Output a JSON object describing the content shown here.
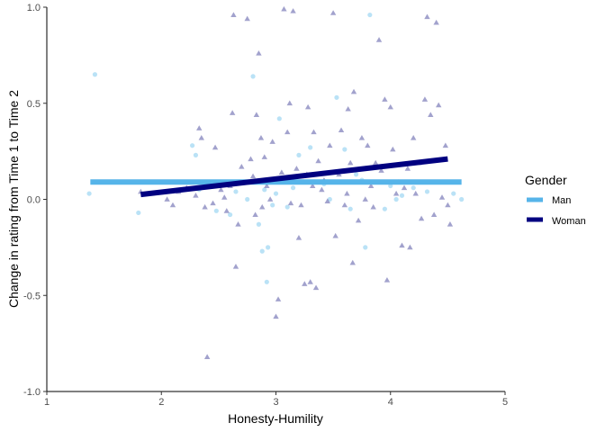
{
  "chart_data": {
    "type": "scatter",
    "title": "",
    "xlabel": "Honesty-Humility",
    "ylabel": "Change in rating from Time 1 to Time 2",
    "xlim": [
      1,
      5
    ],
    "ylim": [
      -1,
      1
    ],
    "x_ticks": [
      1,
      2,
      3,
      4,
      5
    ],
    "x_tick_labels": [
      "1",
      "2",
      "3",
      "4",
      "5"
    ],
    "y_ticks": [
      -1,
      -0.5,
      0,
      0.5,
      1
    ],
    "y_tick_labels": [
      "-1.0",
      "-0.5",
      "0.0",
      "0.5",
      "1.0"
    ],
    "grid": false,
    "legend": {
      "title": "Gender",
      "placement": "right",
      "entries": [
        {
          "label": "Man",
          "color": "#56B4E9"
        },
        {
          "label": "Woman",
          "color": "#000080"
        }
      ]
    },
    "series": [
      {
        "name": "Man",
        "marker": "circle",
        "color": "#AEDDF5",
        "points": [
          [
            1.37,
            0.03
          ],
          [
            1.42,
            0.65
          ],
          [
            1.8,
            -0.07
          ],
          [
            2.27,
            0.28
          ],
          [
            2.3,
            0.23
          ],
          [
            2.33,
            0.05
          ],
          [
            2.48,
            -0.06
          ],
          [
            2.6,
            -0.08
          ],
          [
            2.65,
            0.04
          ],
          [
            2.75,
            0.0
          ],
          [
            2.8,
            0.64
          ],
          [
            2.85,
            -0.13
          ],
          [
            2.88,
            -0.27
          ],
          [
            2.9,
            0.05
          ],
          [
            2.92,
            -0.43
          ],
          [
            2.93,
            -0.25
          ],
          [
            2.97,
            -0.03
          ],
          [
            3.0,
            0.03
          ],
          [
            3.03,
            0.42
          ],
          [
            3.1,
            -0.04
          ],
          [
            3.15,
            0.06
          ],
          [
            3.2,
            0.23
          ],
          [
            3.3,
            0.27
          ],
          [
            3.42,
            0.08
          ],
          [
            3.47,
            0.0
          ],
          [
            3.53,
            0.53
          ],
          [
            3.6,
            0.26
          ],
          [
            3.65,
            -0.05
          ],
          [
            3.7,
            0.13
          ],
          [
            3.75,
            0.1
          ],
          [
            3.78,
            -0.25
          ],
          [
            3.82,
            0.96
          ],
          [
            3.95,
            -0.05
          ],
          [
            4.0,
            0.07
          ],
          [
            4.05,
            0.0
          ],
          [
            4.1,
            0.02
          ],
          [
            4.2,
            0.06
          ],
          [
            4.32,
            0.04
          ],
          [
            4.55,
            0.03
          ],
          [
            4.62,
            -0.0
          ]
        ]
      },
      {
        "name": "Woman",
        "marker": "triangle",
        "color": "#7B7BB8",
        "points": [
          [
            1.82,
            0.04
          ],
          [
            2.05,
            0.0
          ],
          [
            2.1,
            -0.03
          ],
          [
            2.15,
            0.04
          ],
          [
            2.22,
            0.06
          ],
          [
            2.3,
            0.02
          ],
          [
            2.33,
            0.37
          ],
          [
            2.35,
            0.32
          ],
          [
            2.38,
            -0.04
          ],
          [
            2.4,
            -0.82
          ],
          [
            2.45,
            -0.02
          ],
          [
            2.47,
            0.27
          ],
          [
            2.52,
            0.05
          ],
          [
            2.55,
            0.01
          ],
          [
            2.57,
            -0.06
          ],
          [
            2.6,
            0.07
          ],
          [
            2.62,
            0.45
          ],
          [
            2.63,
            0.96
          ],
          [
            2.65,
            -0.35
          ],
          [
            2.67,
            -0.13
          ],
          [
            2.7,
            0.17
          ],
          [
            2.72,
            0.09
          ],
          [
            2.75,
            0.94
          ],
          [
            2.78,
            0.21
          ],
          [
            2.8,
            0.12
          ],
          [
            2.82,
            -0.08
          ],
          [
            2.83,
            0.44
          ],
          [
            2.85,
            0.76
          ],
          [
            2.87,
            0.32
          ],
          [
            2.88,
            -0.04
          ],
          [
            2.9,
            0.22
          ],
          [
            2.92,
            0.07
          ],
          [
            2.95,
            0.0
          ],
          [
            2.97,
            0.3
          ],
          [
            3.0,
            -0.61
          ],
          [
            3.02,
            -0.52
          ],
          [
            3.05,
            0.14
          ],
          [
            3.07,
            0.99
          ],
          [
            3.1,
            0.35
          ],
          [
            3.12,
            0.5
          ],
          [
            3.13,
            -0.02
          ],
          [
            3.15,
            0.98
          ],
          [
            3.18,
            0.16
          ],
          [
            3.2,
            -0.2
          ],
          [
            3.22,
            -0.03
          ],
          [
            3.25,
            -0.44
          ],
          [
            3.27,
            0.13
          ],
          [
            3.28,
            0.48
          ],
          [
            3.3,
            -0.43
          ],
          [
            3.32,
            0.07
          ],
          [
            3.33,
            0.35
          ],
          [
            3.35,
            -0.46
          ],
          [
            3.37,
            0.2
          ],
          [
            3.4,
            0.05
          ],
          [
            3.42,
            0.1
          ],
          [
            3.45,
            -0.01
          ],
          [
            3.47,
            0.28
          ],
          [
            3.5,
            0.97
          ],
          [
            3.52,
            -0.19
          ],
          [
            3.55,
            0.13
          ],
          [
            3.57,
            0.36
          ],
          [
            3.6,
            -0.03
          ],
          [
            3.62,
            0.03
          ],
          [
            3.63,
            0.47
          ],
          [
            3.65,
            0.19
          ],
          [
            3.67,
            -0.33
          ],
          [
            3.68,
            0.56
          ],
          [
            3.7,
            0.09
          ],
          [
            3.72,
            -0.11
          ],
          [
            3.75,
            0.32
          ],
          [
            3.78,
            0.0
          ],
          [
            3.8,
            0.28
          ],
          [
            3.83,
            0.07
          ],
          [
            3.85,
            -0.04
          ],
          [
            3.87,
            0.19
          ],
          [
            3.9,
            0.83
          ],
          [
            3.92,
            0.15
          ],
          [
            3.95,
            0.52
          ],
          [
            3.97,
            -0.42
          ],
          [
            4.0,
            0.48
          ],
          [
            4.02,
            0.26
          ],
          [
            4.05,
            0.03
          ],
          [
            4.07,
            0.09
          ],
          [
            4.1,
            -0.24
          ],
          [
            4.12,
            0.06
          ],
          [
            4.15,
            0.16
          ],
          [
            4.17,
            -0.25
          ],
          [
            4.2,
            0.32
          ],
          [
            4.22,
            0.03
          ],
          [
            4.25,
            0.19
          ],
          [
            4.27,
            -0.1
          ],
          [
            4.3,
            0.52
          ],
          [
            4.32,
            0.95
          ],
          [
            4.35,
            0.44
          ],
          [
            4.38,
            -0.08
          ],
          [
            4.4,
            0.92
          ],
          [
            4.42,
            0.49
          ],
          [
            4.45,
            0.01
          ],
          [
            4.48,
            0.28
          ],
          [
            4.5,
            -0.03
          ],
          [
            4.52,
            -0.13
          ]
        ]
      }
    ],
    "fit_lines": [
      {
        "name": "Man",
        "color": "#56B4E9",
        "x": [
          1.38,
          4.62
        ],
        "y": [
          0.09,
          0.09
        ]
      },
      {
        "name": "Woman",
        "color": "#000080",
        "x": [
          1.82,
          4.5
        ],
        "y": [
          0.025,
          0.21
        ]
      }
    ]
  }
}
